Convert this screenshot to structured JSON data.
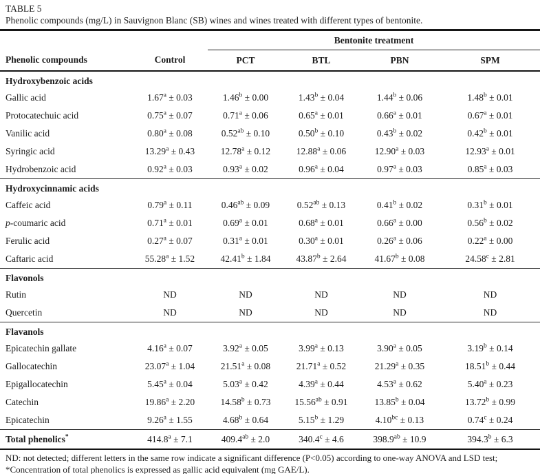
{
  "table_label": "TABLE 5",
  "caption": "Phenolic compounds (mg/L) in Sauvignon Blanc (SB) wines and wines treated with different types of bentonite.",
  "header": {
    "compound_col": "Phenolic compounds",
    "control_col": "Control",
    "group_label": "Bentonite treatment",
    "treatment_cols": [
      "PCT",
      "BTL",
      "PBN",
      "SPM"
    ]
  },
  "sections": [
    {
      "name": "Hydroxybenzoic acids",
      "rows": [
        {
          "name": "Gallic acid",
          "cells": [
            [
              "1.67",
              "a",
              "0.03"
            ],
            [
              "1.46",
              "b",
              "0.00"
            ],
            [
              "1.43",
              "b",
              "0.04"
            ],
            [
              "1.44",
              "b",
              "0.06"
            ],
            [
              "1.48",
              "b",
              "0.01"
            ]
          ]
        },
        {
          "name": "Protocatechuic acid",
          "cells": [
            [
              "0.75",
              "a",
              "0.07"
            ],
            [
              "0.71",
              "a",
              "0.06"
            ],
            [
              "0.65",
              "a",
              "0.01"
            ],
            [
              "0.66",
              "a",
              "0.01"
            ],
            [
              "0.67",
              "a",
              "0.01"
            ]
          ]
        },
        {
          "name": "Vanilic acid",
          "cells": [
            [
              "0.80",
              "a",
              "0.08"
            ],
            [
              "0.52",
              "ab",
              "0.10"
            ],
            [
              "0.50",
              "b",
              "0.10"
            ],
            [
              "0.43",
              "b",
              "0.02"
            ],
            [
              "0.42",
              "b",
              "0.01"
            ]
          ]
        },
        {
          "name": "Syringic acid",
          "cells": [
            [
              "13.29",
              "a",
              "0.43"
            ],
            [
              "12.78",
              "a",
              "0.12"
            ],
            [
              "12.88",
              "a",
              "0.06"
            ],
            [
              "12.90",
              "a",
              "0.03"
            ],
            [
              "12.93",
              "a",
              "0.01"
            ]
          ]
        },
        {
          "name": "Hydrobenzoic acid",
          "cells": [
            [
              "0.92",
              "a",
              "0.03"
            ],
            [
              "0.93",
              "a",
              "0.02"
            ],
            [
              "0.96",
              "a",
              "0.04"
            ],
            [
              "0.97",
              "a",
              "0.03"
            ],
            [
              "0.85",
              "a",
              "0.03"
            ]
          ]
        }
      ]
    },
    {
      "name": "Hydroxycinnamic acids",
      "rows": [
        {
          "name": "Caffeic acid",
          "cells": [
            [
              "0.79",
              "a",
              "0.11"
            ],
            [
              "0.46",
              "ab",
              "0.09"
            ],
            [
              "0.52",
              "ab",
              "0.13"
            ],
            [
              "0.41",
              "b",
              "0.02"
            ],
            [
              "0.31",
              "b",
              "0.01"
            ]
          ]
        },
        {
          "name": "p-coumaric acid",
          "italic_chars": 1,
          "cells": [
            [
              "0.71",
              "a",
              "0.01"
            ],
            [
              "0.69",
              "a",
              "0.01"
            ],
            [
              "0.68",
              "a",
              "0.01"
            ],
            [
              "0.66",
              "a",
              "0.00"
            ],
            [
              "0.56",
              "b",
              "0.02"
            ]
          ]
        },
        {
          "name": "Ferulic acid",
          "cells": [
            [
              "0.27",
              "a",
              "0.07"
            ],
            [
              "0.31",
              "a",
              "0.01"
            ],
            [
              "0.30",
              "a",
              "0.01"
            ],
            [
              "0.26",
              "a",
              "0.06"
            ],
            [
              "0.22",
              "a",
              "0.00"
            ]
          ]
        },
        {
          "name": "Caftaric acid",
          "cells": [
            [
              "55.28",
              "a",
              "1.52"
            ],
            [
              "42.41",
              "b",
              "1.84"
            ],
            [
              "43.87",
              "b",
              "2.64"
            ],
            [
              "41.67",
              "b",
              "0.08"
            ],
            [
              "24.58",
              "c",
              "2.81"
            ]
          ]
        }
      ]
    },
    {
      "name": "Flavonols",
      "rows": [
        {
          "name": "Rutin",
          "cells": [
            [
              "ND"
            ],
            [
              "ND"
            ],
            [
              "ND"
            ],
            [
              "ND"
            ],
            [
              "ND"
            ]
          ]
        },
        {
          "name": "Quercetin",
          "cells": [
            [
              "ND"
            ],
            [
              "ND"
            ],
            [
              "ND"
            ],
            [
              "ND"
            ],
            [
              "ND"
            ]
          ]
        }
      ]
    },
    {
      "name": "Flavanols",
      "rows": [
        {
          "name": "Epicatechin gallate",
          "cells": [
            [
              "4.16",
              "a",
              "0.07"
            ],
            [
              "3.92",
              "a",
              "0.05"
            ],
            [
              "3.99",
              "a",
              "0.13"
            ],
            [
              "3.90",
              "a",
              "0.05"
            ],
            [
              "3.19",
              "b",
              "0.14"
            ]
          ]
        },
        {
          "name": "Gallocatechin",
          "cells": [
            [
              "23.07",
              "a",
              "1.04"
            ],
            [
              "21.51",
              "a",
              "0.08"
            ],
            [
              "21.71",
              "a",
              "0.52"
            ],
            [
              "21.29",
              "a",
              "0.35"
            ],
            [
              "18.51",
              "b",
              "0.44"
            ]
          ]
        },
        {
          "name": "Epigallocatechin",
          "cells": [
            [
              "5.45",
              "a",
              "0.04"
            ],
            [
              "5.03",
              "a",
              "0.42"
            ],
            [
              "4.39",
              "a",
              "0.44"
            ],
            [
              "4.53",
              "a",
              "0.62"
            ],
            [
              "5.40",
              "a",
              "0.23"
            ]
          ]
        },
        {
          "name": "Catechin",
          "cells": [
            [
              "19.86",
              "a",
              "2.20"
            ],
            [
              "14.58",
              "b",
              "0.73"
            ],
            [
              "15.56",
              "ab",
              "0.91"
            ],
            [
              "13.85",
              "b",
              "0.04"
            ],
            [
              "13.72",
              "b",
              "0.99"
            ]
          ]
        },
        {
          "name": "Epicatechin",
          "cells": [
            [
              "9.26",
              "a",
              "1.55"
            ],
            [
              "4.68",
              "b",
              "0.64"
            ],
            [
              "5.15",
              "b",
              "1.29"
            ],
            [
              "4.10",
              "bc",
              "0.13"
            ],
            [
              "0.74",
              "c",
              "0.24"
            ]
          ]
        }
      ]
    }
  ],
  "total_row": {
    "name": "Total phenolics",
    "name_sup": "*",
    "cells": [
      [
        "414.8",
        "a",
        "7.1"
      ],
      [
        "409.4",
        "ab",
        "2.0"
      ],
      [
        "340.4",
        "c",
        "4.6"
      ],
      [
        "398.9",
        "ab",
        "10.9"
      ],
      [
        "394.3",
        "b",
        "6.3"
      ]
    ]
  },
  "footnotes": [
    "ND: not detected; different letters in the same row indicate a significant difference (P<0.05) according to one-way ANOVA and LSD test;",
    "*Concentration of total phenolics is expressed as gallic acid equivalent (mg GAE/L)."
  ],
  "colors": {
    "text": "#1c1c1c",
    "rule": "#141414",
    "background": "#ffffff"
  }
}
